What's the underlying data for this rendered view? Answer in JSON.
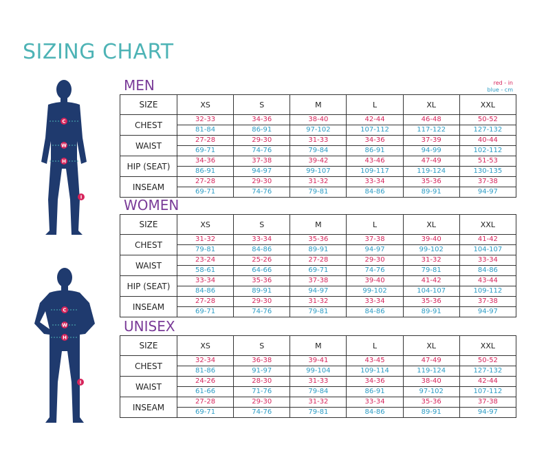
{
  "title": "SIZING CHART",
  "legend": {
    "in": "red - in",
    "cm": "blue - cm"
  },
  "figures": [
    {
      "markers": [
        "C",
        "W",
        "H",
        "I"
      ]
    },
    {
      "markers": [
        "C",
        "W",
        "H",
        "I"
      ]
    }
  ],
  "tables": [
    {
      "name": "MEN",
      "header": [
        "SIZE",
        "XS",
        "S",
        "M",
        "L",
        "XL",
        "XXL"
      ],
      "rows": [
        {
          "label": "CHEST",
          "in": [
            "32-33",
            "34-36",
            "38-40",
            "42-44",
            "46-48",
            "50-52"
          ],
          "cm": [
            "81-84",
            "86-91",
            "97-102",
            "107-112",
            "117-122",
            "127-132"
          ]
        },
        {
          "label": "WAIST",
          "in": [
            "27-28",
            "29-30",
            "31-33",
            "34-36",
            "37-39",
            "40-44"
          ],
          "cm": [
            "69-71",
            "74-76",
            "79-84",
            "86-91",
            "94-99",
            "102-112"
          ]
        },
        {
          "label": "HIP (SEAT)",
          "in": [
            "34-36",
            "37-38",
            "39-42",
            "43-46",
            "47-49",
            "51-53"
          ],
          "cm": [
            "86-91",
            "94-97",
            "99-107",
            "109-117",
            "119-124",
            "130-135"
          ]
        },
        {
          "label": "INSEAM",
          "in": [
            "27-28",
            "29-30",
            "31-32",
            "33-34",
            "35-36",
            "37-38"
          ],
          "cm": [
            "69-71",
            "74-76",
            "79-81",
            "84-86",
            "89-91",
            "94-97"
          ]
        }
      ]
    },
    {
      "name": "WOMEN",
      "header": [
        "SIZE",
        "XS",
        "S",
        "M",
        "L",
        "XL",
        "XXL"
      ],
      "rows": [
        {
          "label": "CHEST",
          "in": [
            "31-32",
            "33-34",
            "35-36",
            "37-38",
            "39-40",
            "41-42"
          ],
          "cm": [
            "79-81",
            "84-86",
            "89-91",
            "94-97",
            "99-102",
            "104-107"
          ]
        },
        {
          "label": "WAIST",
          "in": [
            "23-24",
            "25-26",
            "27-28",
            "29-30",
            "31-32",
            "33-34"
          ],
          "cm": [
            "58-61",
            "64-66",
            "69-71",
            "74-76",
            "79-81",
            "84-86"
          ]
        },
        {
          "label": "HIP (SEAT)",
          "in": [
            "33-34",
            "35-36",
            "37-38",
            "39-40",
            "41-42",
            "43-44"
          ],
          "cm": [
            "84-86",
            "89-91",
            "94-97",
            "99-102",
            "104-107",
            "109-112"
          ]
        },
        {
          "label": "INSEAM",
          "in": [
            "27-28",
            "29-30",
            "31-32",
            "33-34",
            "35-36",
            "37-38"
          ],
          "cm": [
            "69-71",
            "74-76",
            "79-81",
            "84-86",
            "89-91",
            "94-97"
          ]
        }
      ]
    },
    {
      "name": "UNISEX",
      "header": [
        "SIZE",
        "XS",
        "S",
        "M",
        "L",
        "XL",
        "XXL"
      ],
      "rows": [
        {
          "label": "CHEST",
          "in": [
            "32-34",
            "36-38",
            "39-41",
            "43-45",
            "47-49",
            "50-52"
          ],
          "cm": [
            "81-86",
            "91-97",
            "99-104",
            "109-114",
            "119-124",
            "127-132"
          ]
        },
        {
          "label": "WAIST",
          "in": [
            "24-26",
            "28-30",
            "31-33",
            "34-36",
            "38-40",
            "42-44"
          ],
          "cm": [
            "61-66",
            "71-76",
            "79-84",
            "86-91",
            "97-102",
            "107-112"
          ]
        },
        {
          "label": "INSEAM",
          "in": [
            "27-28",
            "29-30",
            "31-32",
            "33-34",
            "35-36",
            "37-38"
          ],
          "cm": [
            "69-71",
            "74-76",
            "79-81",
            "84-86",
            "89-91",
            "94-97"
          ]
        }
      ]
    }
  ]
}
